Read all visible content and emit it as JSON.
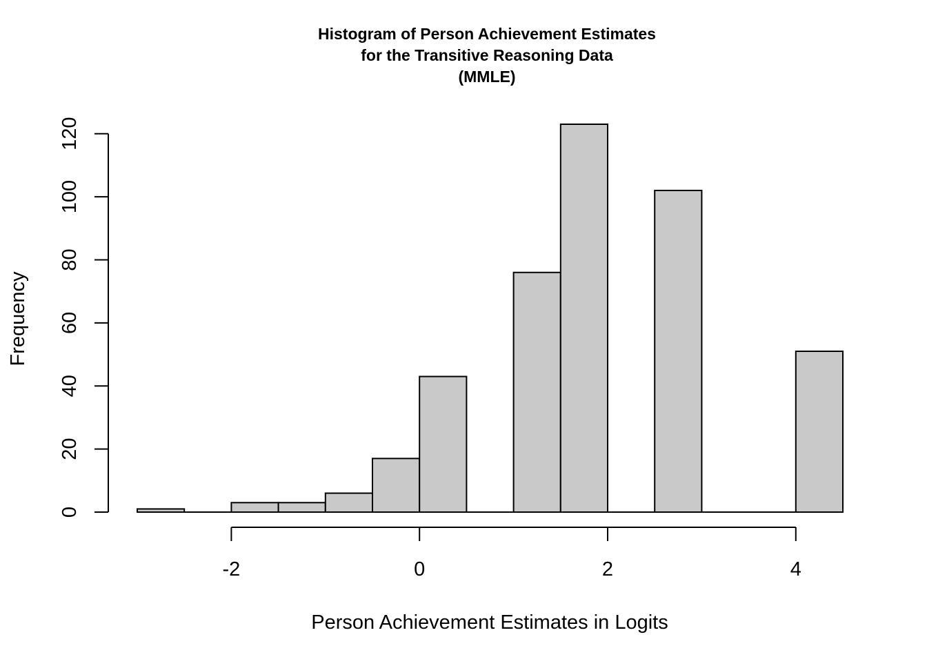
{
  "chart_data": {
    "type": "bar",
    "subtype": "histogram",
    "title_lines": [
      "Histogram of Person Achievement Estimates",
      "for the Transitive Reasoning Data",
      "(MMLE)"
    ],
    "xlabel": "Person Achievement Estimates in Logits",
    "ylabel": "Frequency",
    "bins": [
      {
        "from": -3.0,
        "to": -2.5,
        "count": 1
      },
      {
        "from": -2.5,
        "to": -2.0,
        "count": 0
      },
      {
        "from": -2.0,
        "to": -1.5,
        "count": 3
      },
      {
        "from": -1.5,
        "to": -1.0,
        "count": 3
      },
      {
        "from": -1.0,
        "to": -0.5,
        "count": 6
      },
      {
        "from": -0.5,
        "to": 0.0,
        "count": 17
      },
      {
        "from": 0.0,
        "to": 0.5,
        "count": 43
      },
      {
        "from": 0.5,
        "to": 1.0,
        "count": 0
      },
      {
        "from": 1.0,
        "to": 1.5,
        "count": 76
      },
      {
        "from": 1.5,
        "to": 2.0,
        "count": 123
      },
      {
        "from": 2.0,
        "to": 2.5,
        "count": 0
      },
      {
        "from": 2.5,
        "to": 3.0,
        "count": 102
      },
      {
        "from": 3.0,
        "to": 3.5,
        "count": 0
      },
      {
        "from": 3.5,
        "to": 4.0,
        "count": 0
      },
      {
        "from": 4.0,
        "to": 4.5,
        "count": 51
      }
    ],
    "x_ticks": [
      -2,
      0,
      2,
      4
    ],
    "x_tick_labels": [
      "-2",
      "0",
      "2",
      "4"
    ],
    "y_ticks": [
      0,
      20,
      40,
      60,
      80,
      100,
      120
    ],
    "y_tick_labels": [
      "0",
      "20",
      "40",
      "60",
      "80",
      "100",
      "120"
    ],
    "xlim": [
      -3.0,
      4.5
    ],
    "ylim": [
      0,
      123
    ],
    "bar_fill": "#c9c9c9",
    "bar_stroke": "#000000",
    "grid": false,
    "legend": "none"
  }
}
